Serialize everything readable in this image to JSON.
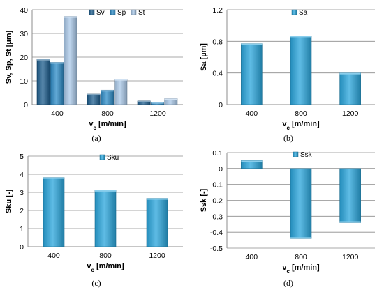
{
  "chart_data": [
    {
      "type": "bar",
      "caption": "(a)",
      "categories": [
        "400",
        "800",
        "1200"
      ],
      "series": [
        {
          "name": "Sv",
          "values": [
            19.2,
            4.4,
            1.5
          ],
          "color": "#1f5f8f"
        },
        {
          "name": "Sp",
          "values": [
            17.8,
            6.1,
            1.0
          ],
          "color": "#2e8cc7"
        },
        {
          "name": "St",
          "values": [
            37.2,
            10.7,
            2.5
          ],
          "color": "#a9c8e8"
        }
      ],
      "ylabel": "Sv, Sp, St [µm]",
      "xlabel_main": "v",
      "xlabel_sub": "c",
      "xlabel_rest": " [m/min]",
      "ylim": [
        0,
        40
      ],
      "yticks": [
        "0",
        "10",
        "20",
        "30",
        "40"
      ],
      "grid": true,
      "legend": "top-right"
    },
    {
      "type": "bar",
      "caption": "(b)",
      "categories": [
        "400",
        "800",
        "1200"
      ],
      "series": [
        {
          "name": "Sa",
          "values": [
            0.77,
            0.87,
            0.4
          ],
          "color": "#2aa6dc"
        }
      ],
      "ylabel": "Sa [µm]",
      "xlabel_main": "v",
      "xlabel_sub": "c",
      "xlabel_rest": " [m/min]",
      "ylim": [
        0,
        1.2
      ],
      "yticks": [
        "0",
        "0.4",
        "0.8",
        "1.2"
      ],
      "grid": true,
      "legend": "top-center"
    },
    {
      "type": "bar",
      "caption": "(c)",
      "categories": [
        "400",
        "800",
        "1200"
      ],
      "series": [
        {
          "name": "Sku",
          "values": [
            3.82,
            3.12,
            2.67
          ],
          "color": "#2aa6dc"
        }
      ],
      "ylabel": "Sku [-]",
      "xlabel_main": "v",
      "xlabel_sub": "c",
      "xlabel_rest": " [m/min]",
      "ylim": [
        0,
        5
      ],
      "yticks": [
        "0",
        "1",
        "2",
        "3",
        "4",
        "5"
      ],
      "grid": true,
      "legend": "top-center"
    },
    {
      "type": "bar",
      "caption": "(d)",
      "categories": [
        "400",
        "800",
        "1200"
      ],
      "series": [
        {
          "name": "Ssk",
          "values": [
            0.05,
            -0.44,
            -0.34
          ],
          "color": "#2aa6dc"
        }
      ],
      "ylabel": "Ssk [-]",
      "xlabel_main": "v",
      "xlabel_sub": "c",
      "xlabel_rest": " [m/min]",
      "ylim": [
        -0.5,
        0.1
      ],
      "yticks": [
        "-0.5",
        "-0.4",
        "-0.3",
        "-0.2",
        "-0.1",
        "0",
        "0.1"
      ],
      "grid": true,
      "legend": "top-center"
    }
  ]
}
